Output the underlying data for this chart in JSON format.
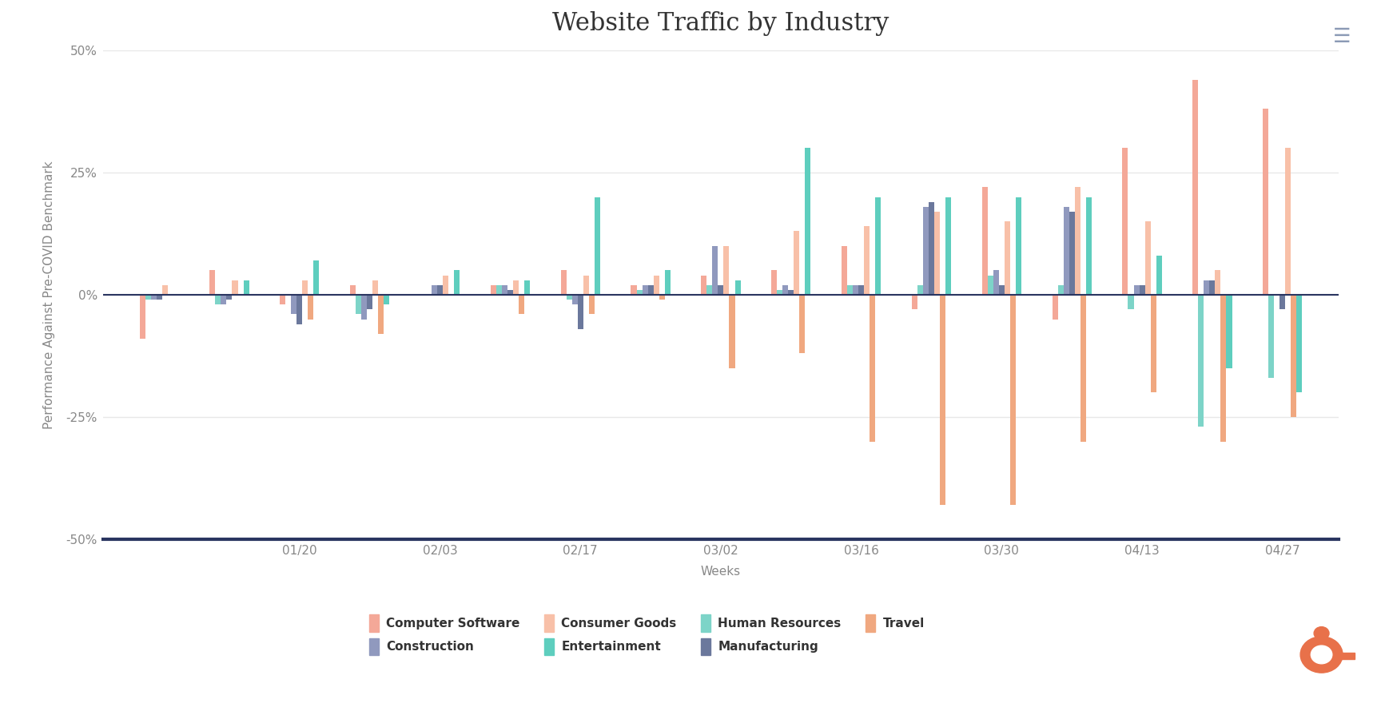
{
  "title": "Website Traffic by Industry",
  "xlabel": "Weeks",
  "ylabel": "Performance Against Pre-COVID Benchmark",
  "ylim": [
    -50,
    50
  ],
  "yticks": [
    -50,
    -25,
    0,
    25,
    50
  ],
  "ytick_labels": [
    "-50%",
    "-25%",
    "0%",
    "25%",
    "50%"
  ],
  "background_color": "#ffffff",
  "grid_color": "#e8e8e8",
  "axis_line_color": "#2a3560",
  "xtick_labels": [
    "01/20",
    "02/03",
    "02/17",
    "03/02",
    "03/16",
    "03/30",
    "04/13",
    "04/27"
  ],
  "xtick_positions": [
    2,
    4,
    6,
    8,
    10,
    12,
    14,
    16
  ],
  "series_order": [
    "Computer Software",
    "Human Resources",
    "Construction",
    "Manufacturing",
    "Consumer Goods",
    "Travel",
    "Entertainment"
  ],
  "series": {
    "Computer Software": {
      "color": "#f4a898",
      "values": [
        -9,
        5,
        -2,
        2,
        0,
        2,
        5,
        2,
        4,
        5,
        10,
        -3,
        22,
        -5,
        30,
        44,
        38
      ]
    },
    "Human Resources": {
      "color": "#7dd4c8",
      "values": [
        -1,
        -2,
        0,
        -4,
        0,
        2,
        -1,
        1,
        2,
        1,
        2,
        2,
        4,
        2,
        -3,
        -27,
        -17
      ]
    },
    "Construction": {
      "color": "#9099be",
      "values": [
        -1,
        -2,
        -4,
        -5,
        2,
        2,
        -2,
        2,
        10,
        2,
        2,
        18,
        5,
        18,
        2,
        3,
        0
      ]
    },
    "Manufacturing": {
      "color": "#6b789c",
      "values": [
        -1,
        -1,
        -6,
        -3,
        2,
        1,
        -7,
        2,
        2,
        1,
        2,
        19,
        2,
        17,
        2,
        3,
        -3
      ]
    },
    "Consumer Goods": {
      "color": "#f8c0a8",
      "values": [
        2,
        3,
        3,
        3,
        4,
        3,
        4,
        4,
        10,
        13,
        14,
        17,
        15,
        22,
        15,
        5,
        30
      ]
    },
    "Travel": {
      "color": "#f0a880",
      "values": [
        0,
        0,
        -5,
        -8,
        0,
        -4,
        -4,
        -1,
        -15,
        -12,
        -30,
        -43,
        -43,
        -30,
        -20,
        -30,
        -25
      ]
    },
    "Entertainment": {
      "color": "#5ecebe",
      "values": [
        0,
        3,
        7,
        -2,
        5,
        3,
        20,
        5,
        3,
        30,
        20,
        20,
        20,
        20,
        8,
        -15,
        -20
      ]
    }
  },
  "legend_order": [
    "Computer Software",
    "Human Resources",
    "Construction",
    "Manufacturing",
    "Consumer Goods",
    "Travel",
    "Entertainment"
  ],
  "title_fontsize": 22,
  "label_fontsize": 11,
  "tick_fontsize": 11,
  "legend_fontsize": 11,
  "bar_width": 0.08
}
